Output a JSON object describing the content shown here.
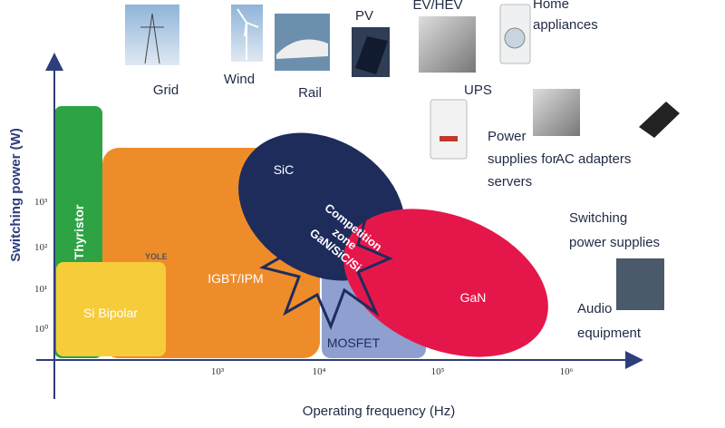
{
  "axes": {
    "y_title": "Switching power (W)",
    "x_title": "Operating frequency (Hz)",
    "y_ticks": [
      "10⁰",
      "10¹",
      "10²",
      "10³"
    ],
    "x_ticks": [
      "10³",
      "10⁴",
      "10⁵",
      "10⁶"
    ]
  },
  "regions": {
    "thyristor": "Thyristor",
    "si_bipolar": "Si Bipolar",
    "igbt": "IGBT/IPM",
    "sic": "SiC",
    "gan": "GaN",
    "mosfet": "MOSFET",
    "competition": [
      "Competition",
      "zone",
      "GaN/SiC/Si"
    ]
  },
  "applications": {
    "grid": "Grid",
    "wind": "Wind",
    "rail": "Rail",
    "pv": "PV",
    "ev": "EV/HEV",
    "home": [
      "Home",
      "appliances"
    ],
    "ups": "UPS",
    "power": [
      "Power",
      "supplies for",
      "servers"
    ],
    "adapters": "AC adapters",
    "switching": [
      "Switching",
      "power supplies"
    ],
    "audio": [
      "Audio",
      "equipment"
    ]
  },
  "watermark": "YOLE"
}
